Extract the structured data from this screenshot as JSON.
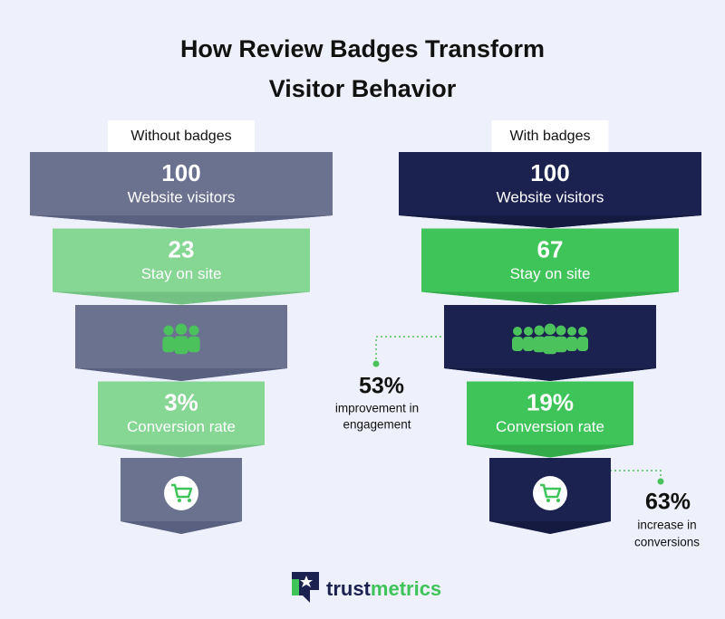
{
  "title": [
    "How Review Badges Transform",
    "Visitor Behavior"
  ],
  "funnels": [
    {
      "label": "Without badges",
      "stages": [
        {
          "value": "100",
          "text": "Website visitors"
        },
        {
          "value": "23",
          "text": "Stay on site"
        },
        {
          "value": "3%",
          "text": "Conversion rate"
        }
      ]
    },
    {
      "label": "With badges",
      "stages": [
        {
          "value": "100",
          "text": "Website visitors"
        },
        {
          "value": "67",
          "text": "Stay on site"
        },
        {
          "value": "19%",
          "text": "Conversion rate"
        }
      ]
    }
  ],
  "annotations": [
    {
      "value": "53%",
      "lines": [
        "improvement in",
        "engagement"
      ]
    },
    {
      "value": "63%",
      "lines": [
        "increase in",
        "conversions"
      ]
    }
  ],
  "logo": {
    "part1": "trust",
    "part2": "metrics"
  }
}
